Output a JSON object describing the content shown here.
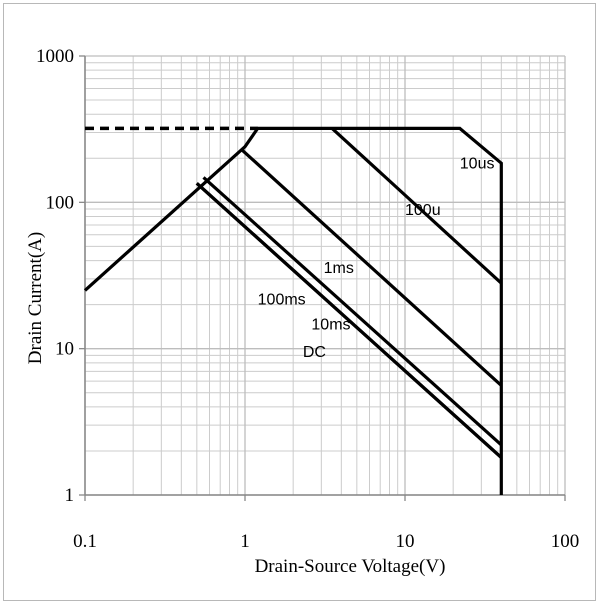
{
  "chart_data": {
    "type": "line",
    "title": "",
    "xlabel": "Drain-Source Voltage(V)",
    "ylabel": "Drain Current(A)",
    "x_scale": "log",
    "y_scale": "log",
    "xlim": [
      0.1,
      100
    ],
    "ylim": [
      1,
      1000
    ],
    "grid": true,
    "x_ticks": [
      {
        "value": 0.1,
        "label": "0.1"
      },
      {
        "value": 1,
        "label": "1"
      },
      {
        "value": 10,
        "label": "10"
      },
      {
        "value": 100,
        "label": "100"
      }
    ],
    "y_ticks": [
      {
        "value": 1,
        "label": "1"
      },
      {
        "value": 10,
        "label": "10"
      },
      {
        "value": 100,
        "label": "100"
      },
      {
        "value": 1000,
        "label": "1000"
      }
    ],
    "colors": {
      "line": "#000000",
      "grid": "#cccccc"
    },
    "current_limit_dashed": {
      "x": [
        0.1,
        1.2
      ],
      "y": [
        320,
        320
      ]
    },
    "series": [
      {
        "name": "10us",
        "x": [
          0.1,
          1.0,
          1.2,
          22,
          40,
          40
        ],
        "y": [
          25,
          240,
          320,
          320,
          185,
          1
        ]
      },
      {
        "name": "100u",
        "x": [
          3.5,
          40
        ],
        "y": [
          320,
          28
        ]
      },
      {
        "name": "1ms",
        "x": [
          0.95,
          40
        ],
        "y": [
          230,
          5.6
        ]
      },
      {
        "name": "100ms",
        "x": [
          0.55,
          40
        ],
        "y": [
          148,
          2.2
        ]
      },
      {
        "name": "10ms",
        "x": [
          0.5,
          40
        ],
        "y": [
          135,
          1.8
        ]
      },
      {
        "name": "DC",
        "x": [
          0.5,
          40
        ],
        "y": [
          135,
          1.8
        ]
      }
    ],
    "labels": [
      {
        "text": "10us",
        "x": 22,
        "y": 170
      },
      {
        "text": "100u",
        "x": 10,
        "y": 82
      },
      {
        "text": "1ms",
        "x": 3.1,
        "y": 33
      },
      {
        "text": "100ms",
        "x": 1.2,
        "y": 20
      },
      {
        "text": "10ms",
        "x": 2.6,
        "y": 13.5
      },
      {
        "text": "DC",
        "x": 2.3,
        "y": 8.8
      }
    ]
  }
}
